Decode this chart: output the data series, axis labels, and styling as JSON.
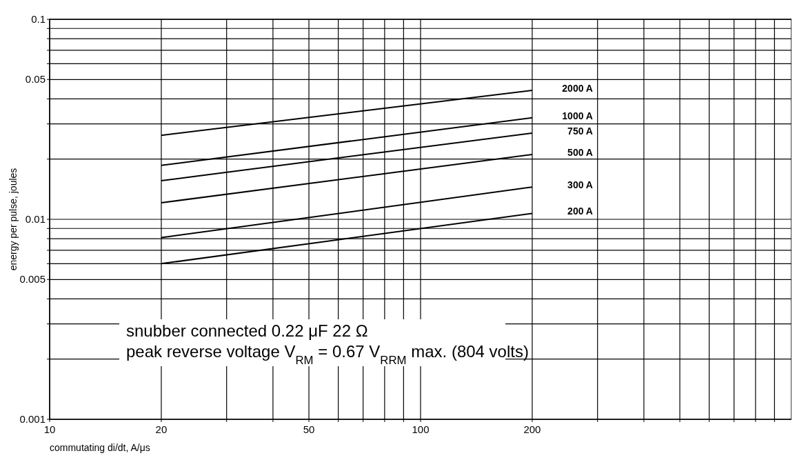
{
  "chart_data": {
    "type": "line",
    "xlabel": "commutating di/dt, A/μs",
    "ylabel": "energy per pulse, joules",
    "log": "xy",
    "grid": true,
    "marker": "none",
    "line_style": "solid",
    "xlim": [
      10,
      1000
    ],
    "ylim": [
      0.001,
      0.1
    ],
    "xticks": [
      10,
      20,
      {
        "value": 30,
        "label": null
      },
      {
        "value": 40,
        "label": null
      },
      50,
      {
        "value": 60,
        "label": null
      },
      {
        "value": 70,
        "label": null
      },
      {
        "value": 80,
        "label": null
      },
      {
        "value": 90,
        "label": null
      },
      100,
      200,
      {
        "value": 300,
        "label": null
      },
      {
        "value": 400,
        "label": null
      },
      {
        "value": 500,
        "label": null
      },
      {
        "value": 600,
        "label": null
      },
      {
        "value": 700,
        "label": null
      },
      {
        "value": 800,
        "label": null
      },
      {
        "value": 900,
        "label": null
      }
    ],
    "yticks": [
      0.001,
      {
        "value": 0.002,
        "label": null
      },
      {
        "value": 0.003,
        "label": null
      },
      {
        "value": 0.004,
        "label": null
      },
      0.005,
      {
        "value": 0.006,
        "label": null
      },
      {
        "value": 0.007,
        "label": null
      },
      {
        "value": 0.008,
        "label": null
      },
      {
        "value": 0.009,
        "label": null
      },
      0.01,
      {
        "value": 0.02,
        "label": null
      },
      {
        "value": 0.03,
        "label": null
      },
      {
        "value": 0.04,
        "label": null
      },
      0.05,
      {
        "value": 0.06,
        "label": null
      },
      {
        "value": 0.07,
        "label": null
      },
      {
        "value": 0.08,
        "label": null
      },
      {
        "value": 0.09,
        "label": null
      },
      0.1
    ],
    "x": [
      20,
      200
    ],
    "series": [
      {
        "name": "2000 A",
        "color": "#000000",
        "values": [
          0.0263,
          0.0441
        ]
      },
      {
        "name": "1000 A",
        "color": "#000000",
        "values": [
          0.0186,
          0.0322
        ]
      },
      {
        "name": "750 A",
        "color": "#000000",
        "values": [
          0.0156,
          0.027
        ]
      },
      {
        "name": "500 A",
        "color": "#000000",
        "values": [
          0.0121,
          0.0211
        ]
      },
      {
        "name": "300 A",
        "color": "#000000",
        "values": [
          0.0081,
          0.0145
        ]
      },
      {
        "name": "200 A",
        "color": "#000000",
        "values": [
          0.006,
          0.0107
        ]
      }
    ],
    "annotations": [
      "snubber connected 0.22 μF 22 Ω",
      "peak reverse voltage V$_{RM}$ = 0.67 V$_{RRM}$ max. (804 volts)"
    ]
  }
}
